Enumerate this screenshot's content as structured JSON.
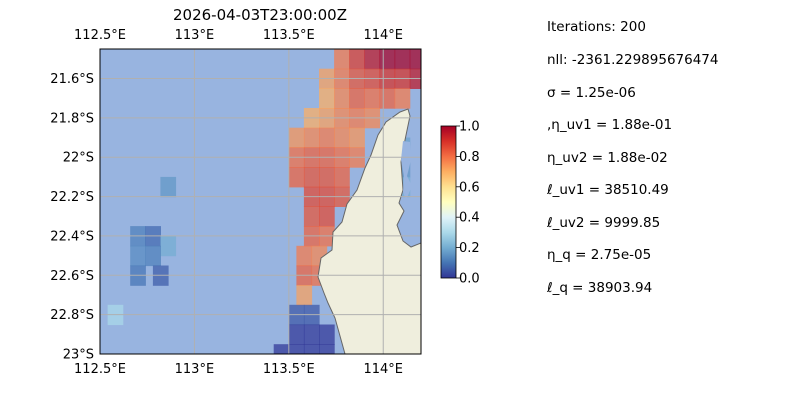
{
  "chart_data": {
    "type": "heatmap",
    "title": "2026-04-03T23:00:00Z",
    "x_axis": {
      "ticks": [
        "112.5°E",
        "113°E",
        "113.5°E",
        "114°E"
      ],
      "tick_values": [
        112.5,
        113.0,
        113.5,
        114.0
      ],
      "range": [
        112.5,
        114.2
      ],
      "positions": "top and bottom"
    },
    "y_axis": {
      "ticks": [
        "21.6°S",
        "21.8°S",
        "22°S",
        "22.2°S",
        "22.4°S",
        "22.6°S",
        "22.8°S",
        "23°S"
      ],
      "tick_values": [
        -21.6,
        -21.8,
        -22.0,
        -22.2,
        -22.4,
        -22.6,
        -22.8,
        -23.0
      ],
      "range": [
        -23.0,
        -21.45
      ]
    },
    "grid": true,
    "colorbar": {
      "ticks": [
        "0.0",
        "0.2",
        "0.4",
        "0.6",
        "0.8",
        "1.0"
      ],
      "range": [
        0,
        1
      ],
      "colormap": "RdYlBu_r"
    },
    "colors": {
      "ocean": "#98b4e0",
      "land": "#efeedd",
      "coast": "#666666",
      "grid": "#b0b0b0"
    },
    "cells": [
      {
        "lon": 113.78,
        "lat": -21.5,
        "v": 0.78
      },
      {
        "lon": 113.86,
        "lat": -21.5,
        "v": 0.88
      },
      {
        "lon": 113.94,
        "lat": -21.5,
        "v": 0.95
      },
      {
        "lon": 114.02,
        "lat": -21.5,
        "v": 1.0
      },
      {
        "lon": 114.1,
        "lat": -21.5,
        "v": 1.0
      },
      {
        "lon": 114.18,
        "lat": -21.5,
        "v": 1.0
      },
      {
        "lon": 113.7,
        "lat": -21.6,
        "v": 0.72
      },
      {
        "lon": 113.78,
        "lat": -21.6,
        "v": 0.78
      },
      {
        "lon": 113.86,
        "lat": -21.6,
        "v": 0.84
      },
      {
        "lon": 113.94,
        "lat": -21.6,
        "v": 0.86
      },
      {
        "lon": 114.02,
        "lat": -21.6,
        "v": 0.9
      },
      {
        "lon": 114.1,
        "lat": -21.6,
        "v": 0.9
      },
      {
        "lon": 114.18,
        "lat": -21.6,
        "v": 0.95
      },
      {
        "lon": 113.7,
        "lat": -21.7,
        "v": 0.7
      },
      {
        "lon": 113.78,
        "lat": -21.7,
        "v": 0.76
      },
      {
        "lon": 113.86,
        "lat": -21.7,
        "v": 0.82
      },
      {
        "lon": 113.94,
        "lat": -21.7,
        "v": 0.8
      },
      {
        "lon": 114.02,
        "lat": -21.7,
        "v": 0.82
      },
      {
        "lon": 114.1,
        "lat": -21.7,
        "v": 0.78
      },
      {
        "lon": 113.62,
        "lat": -21.8,
        "v": 0.7
      },
      {
        "lon": 113.7,
        "lat": -21.8,
        "v": 0.72
      },
      {
        "lon": 113.78,
        "lat": -21.8,
        "v": 0.76
      },
      {
        "lon": 113.86,
        "lat": -21.8,
        "v": 0.78
      },
      {
        "lon": 113.94,
        "lat": -21.8,
        "v": 0.76
      },
      {
        "lon": 113.54,
        "lat": -21.9,
        "v": 0.74
      },
      {
        "lon": 113.62,
        "lat": -21.9,
        "v": 0.76
      },
      {
        "lon": 113.7,
        "lat": -21.9,
        "v": 0.78
      },
      {
        "lon": 113.78,
        "lat": -21.9,
        "v": 0.76
      },
      {
        "lon": 113.86,
        "lat": -21.9,
        "v": 0.74
      },
      {
        "lon": 113.54,
        "lat": -22.0,
        "v": 0.8
      },
      {
        "lon": 113.62,
        "lat": -22.0,
        "v": 0.82
      },
      {
        "lon": 113.7,
        "lat": -22.0,
        "v": 0.82
      },
      {
        "lon": 113.78,
        "lat": -22.0,
        "v": 0.8
      },
      {
        "lon": 113.86,
        "lat": -22.0,
        "v": 0.78
      },
      {
        "lon": 113.54,
        "lat": -22.1,
        "v": 0.82
      },
      {
        "lon": 113.62,
        "lat": -22.1,
        "v": 0.84
      },
      {
        "lon": 113.7,
        "lat": -22.1,
        "v": 0.84
      },
      {
        "lon": 113.78,
        "lat": -22.1,
        "v": 0.82
      },
      {
        "lon": 113.62,
        "lat": -22.2,
        "v": 0.86
      },
      {
        "lon": 113.7,
        "lat": -22.2,
        "v": 0.86
      },
      {
        "lon": 113.78,
        "lat": -22.2,
        "v": 0.84
      },
      {
        "lon": 113.62,
        "lat": -22.3,
        "v": 0.84
      },
      {
        "lon": 113.7,
        "lat": -22.3,
        "v": 0.86
      },
      {
        "lon": 113.62,
        "lat": -22.4,
        "v": 0.82
      },
      {
        "lon": 113.7,
        "lat": -22.4,
        "v": 0.8
      },
      {
        "lon": 113.58,
        "lat": -22.5,
        "v": 0.78
      },
      {
        "lon": 113.66,
        "lat": -22.5,
        "v": 0.76
      },
      {
        "lon": 113.58,
        "lat": -22.6,
        "v": 0.82
      },
      {
        "lon": 113.66,
        "lat": -22.6,
        "v": 0.8
      },
      {
        "lon": 113.58,
        "lat": -22.7,
        "v": 0.72
      },
      {
        "lon": 113.54,
        "lat": -22.8,
        "v": 0.05
      },
      {
        "lon": 113.62,
        "lat": -22.8,
        "v": 0.05
      },
      {
        "lon": 113.54,
        "lat": -22.9,
        "v": 0.0
      },
      {
        "lon": 113.62,
        "lat": -22.9,
        "v": 0.0
      },
      {
        "lon": 113.7,
        "lat": -22.9,
        "v": 0.0
      },
      {
        "lon": 113.46,
        "lat": -23.0,
        "v": 0.0
      },
      {
        "lon": 113.54,
        "lat": -23.0,
        "v": 0.0
      },
      {
        "lon": 113.62,
        "lat": -23.0,
        "v": 0.0
      },
      {
        "lon": 113.7,
        "lat": -23.0,
        "v": 0.0
      },
      {
        "lon": 114.1,
        "lat": -21.95,
        "v": 0.18
      },
      {
        "lon": 114.1,
        "lat": -22.05,
        "v": 0.16
      },
      {
        "lon": 114.1,
        "lat": -22.15,
        "v": 0.2
      },
      {
        "lon": 112.7,
        "lat": -22.4,
        "v": 0.12
      },
      {
        "lon": 112.78,
        "lat": -22.4,
        "v": 0.08
      },
      {
        "lon": 112.86,
        "lat": -22.45,
        "v": 0.2
      },
      {
        "lon": 112.7,
        "lat": -22.5,
        "v": 0.14
      },
      {
        "lon": 112.78,
        "lat": -22.5,
        "v": 0.12
      },
      {
        "lon": 112.7,
        "lat": -22.6,
        "v": 0.1
      },
      {
        "lon": 112.82,
        "lat": -22.6,
        "v": 0.06
      },
      {
        "lon": 112.86,
        "lat": -22.15,
        "v": 0.16
      },
      {
        "lon": 112.58,
        "lat": -22.8,
        "v": 0.3
      }
    ]
  },
  "stats": {
    "iterations": "Iterations: 200",
    "nll": "nll: -2361.229895676474",
    "sigma": "σ = 1.25e-06",
    "eta_uv1": ",η_uv1 = 1.88e-01",
    "eta_uv2": "η_uv2 = 1.88e-02",
    "ell_uv1": "ℓ_uv1 = 38510.49",
    "ell_uv2": "ℓ_uv2 = 9999.85",
    "eta_q": "η_q = 2.75e-05",
    "ell_q": "ℓ_q = 38903.94"
  }
}
